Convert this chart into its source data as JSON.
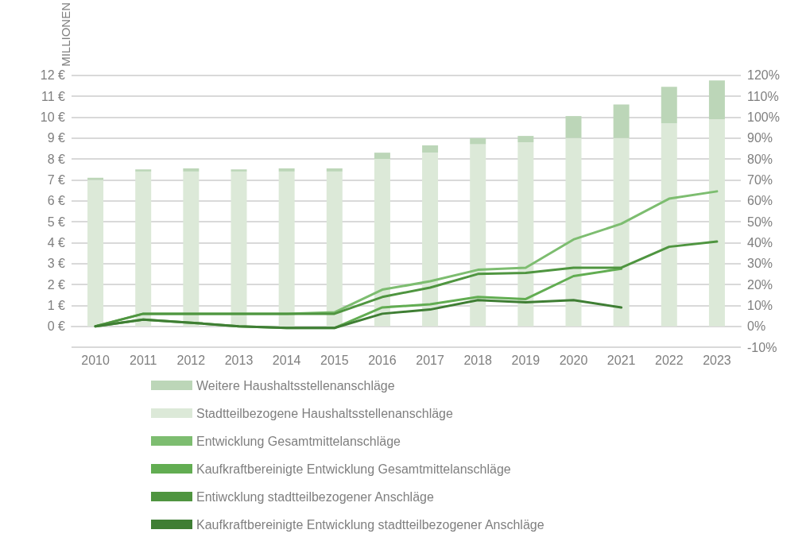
{
  "chart_data": {
    "type": "bar",
    "ylabel": "MILLIONEN",
    "stacked": true,
    "categories": [
      "2010",
      "2011",
      "2012",
      "2013",
      "2014",
      "2015",
      "2016",
      "2017",
      "2018",
      "2019",
      "2020",
      "2021",
      "2022",
      "2023"
    ],
    "series": [
      {
        "name": "Stadtteilbezogene Haushaltsstellenanschläge",
        "color": "#dce9d8",
        "values": [
          7.0,
          7.4,
          7.4,
          7.4,
          7.4,
          7.4,
          8.0,
          8.3,
          8.7,
          8.8,
          9.0,
          9.0,
          9.7,
          9.9
        ]
      },
      {
        "name": "Weitere Haushaltsstellenanschläge",
        "color": "#bcd6b8",
        "values": [
          0.1,
          0.1,
          0.15,
          0.1,
          0.15,
          0.15,
          0.3,
          0.35,
          0.3,
          0.3,
          1.05,
          1.6,
          1.75,
          1.85
        ]
      },
      {
        "name": "Entwicklung Gesamtmittelanschläge",
        "type": "line",
        "axis": "y2",
        "color": "#7dbd70",
        "values": [
          0,
          6,
          6,
          6,
          6,
          6.7,
          17.5,
          21.5,
          27,
          28,
          41.5,
          49,
          61,
          64.5
        ]
      },
      {
        "name": "Kaufkraftbereinigte Entwicklung Gesamtmittelanschläge",
        "type": "line",
        "axis": "y2",
        "color": "#62ad52",
        "values": [
          0,
          3.2,
          1.7,
          0,
          -0.8,
          -0.8,
          9,
          10.5,
          14,
          13,
          24,
          27.5,
          null,
          null
        ]
      },
      {
        "name": "Entiwcklung stadtteilbezogener Anschläge",
        "type": "line",
        "axis": "y2",
        "color": "#4f9540",
        "values": [
          0,
          6,
          6,
          6,
          6,
          6,
          14,
          18.5,
          25,
          25.5,
          28,
          28,
          38,
          40.5
        ]
      },
      {
        "name": "Kaufkraftbereinigte Entwicklung stadtteilbezogener Anschläge",
        "type": "line",
        "axis": "y2",
        "color": "#3f7e34",
        "values": [
          0,
          3.2,
          1.7,
          0,
          -0.8,
          -0.8,
          6,
          8,
          12.5,
          11.5,
          12.5,
          9,
          null,
          null
        ]
      }
    ],
    "ylim": [
      -1,
      12
    ],
    "yticks": [
      {
        "value": -1,
        "label": null
      },
      {
        "value": 0,
        "label": "0 €"
      },
      {
        "value": 1,
        "label": "1 €"
      },
      {
        "value": 2,
        "label": "2 €"
      },
      {
        "value": 3,
        "label": "3 €"
      },
      {
        "value": 4,
        "label": "4 €"
      },
      {
        "value": 5,
        "label": "5 €"
      },
      {
        "value": 6,
        "label": "6 €"
      },
      {
        "value": 7,
        "label": "7 €"
      },
      {
        "value": 8,
        "label": "8 €"
      },
      {
        "value": 9,
        "label": "9 €"
      },
      {
        "value": 10,
        "label": "10 €"
      },
      {
        "value": 11,
        "label": "11 €"
      },
      {
        "value": 12,
        "label": "12 €"
      }
    ],
    "y2lim": [
      -10,
      120
    ],
    "y2ticks": [
      {
        "value": -10,
        "label": "-10%"
      },
      {
        "value": 0,
        "label": "0%"
      },
      {
        "value": 10,
        "label": "10%"
      },
      {
        "value": 20,
        "label": "20%"
      },
      {
        "value": 30,
        "label": "30%"
      },
      {
        "value": 40,
        "label": "40%"
      },
      {
        "value": 50,
        "label": "50%"
      },
      {
        "value": 60,
        "label": "60%"
      },
      {
        "value": 70,
        "label": "70%"
      },
      {
        "value": 80,
        "label": "80%"
      },
      {
        "value": 90,
        "label": "90%"
      },
      {
        "value": 100,
        "label": "100%"
      },
      {
        "value": 110,
        "label": "110%"
      },
      {
        "value": 120,
        "label": "120%"
      }
    ],
    "grid": "y",
    "legend": "bottom",
    "marker": "none",
    "line_style": "solid"
  }
}
